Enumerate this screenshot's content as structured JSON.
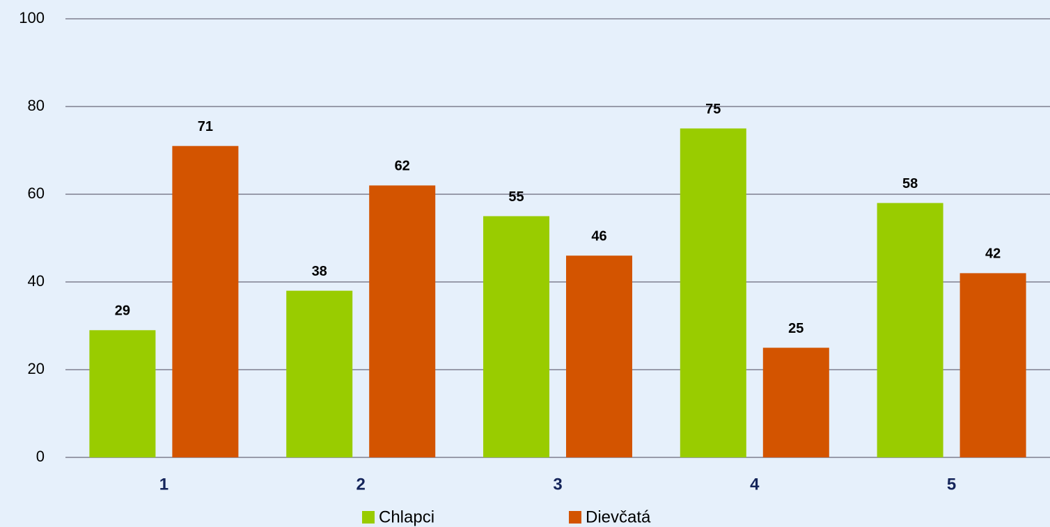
{
  "chart_data": {
    "type": "bar",
    "categories": [
      "1",
      "2",
      "3",
      "4",
      "5"
    ],
    "series": [
      {
        "name": "Chlapci",
        "color": "#99cc00",
        "values": [
          29,
          38,
          55,
          75,
          58
        ]
      },
      {
        "name": "Dievčatá",
        "color": "#d35400",
        "values": [
          71,
          62,
          46,
          25,
          42
        ]
      }
    ],
    "ylim": [
      0,
      100
    ],
    "yticks": [
      0,
      20,
      40,
      60,
      80,
      100
    ],
    "grid": true,
    "legend": "bottom"
  }
}
